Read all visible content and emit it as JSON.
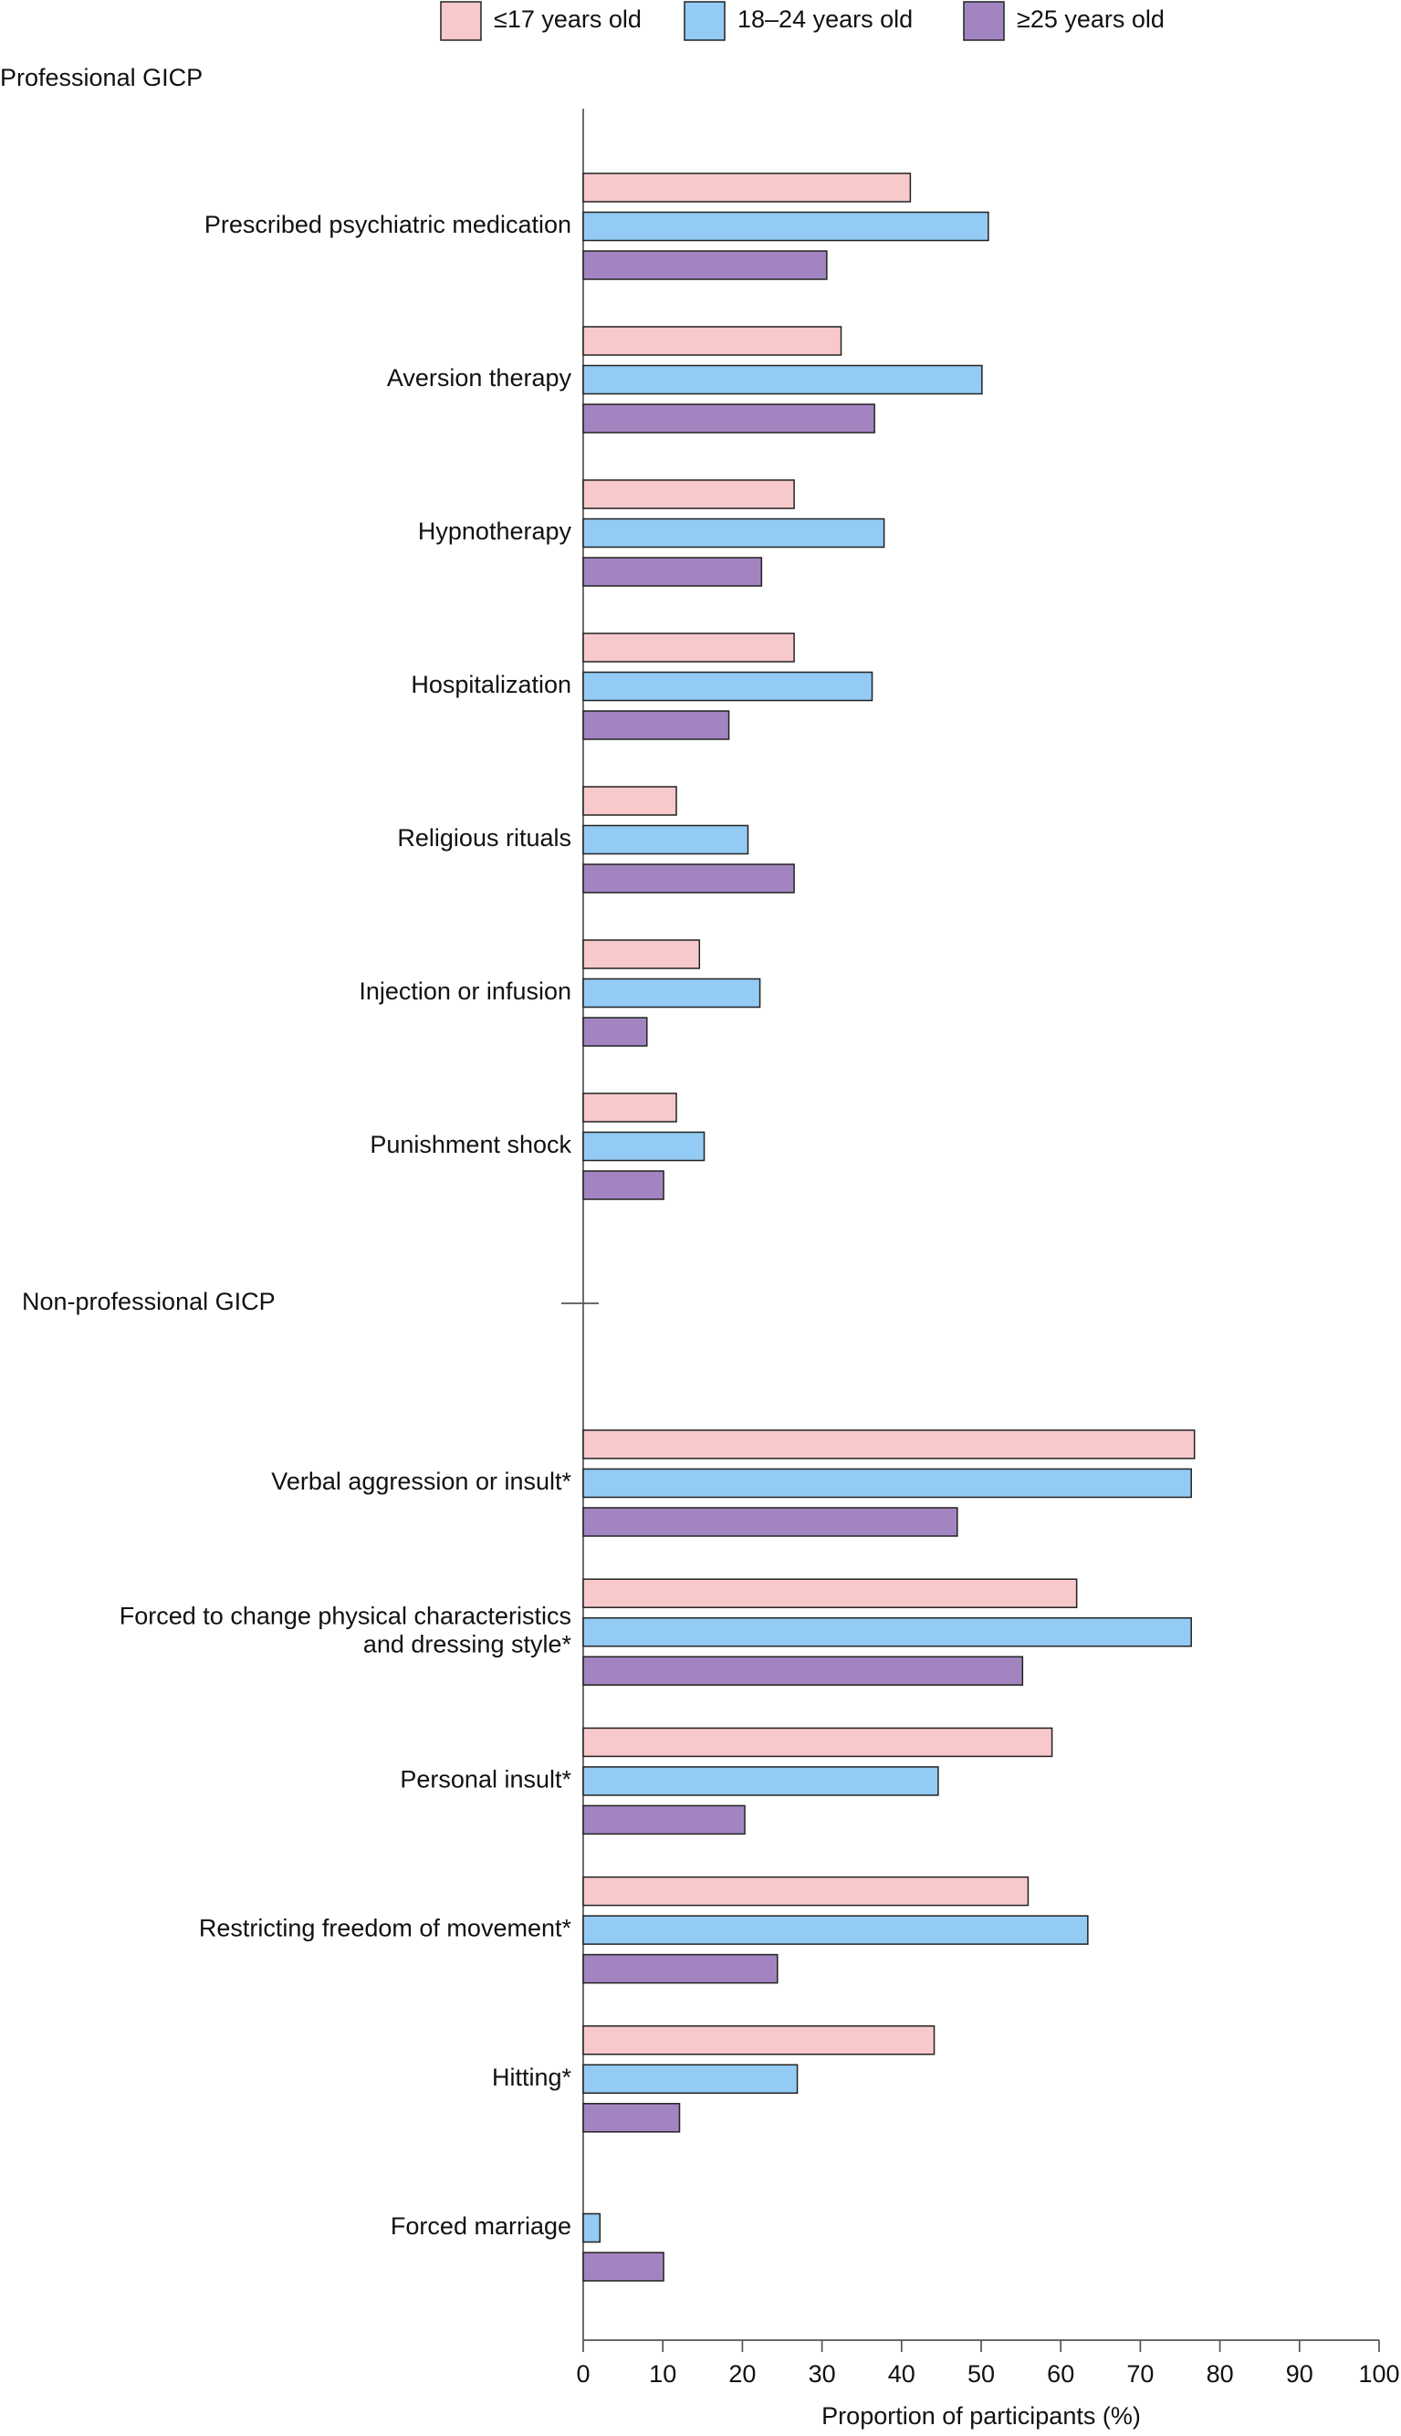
{
  "chart_data": {
    "type": "barh",
    "xlabel": "Proportion of participants (%)",
    "xlim": [
      0,
      100
    ],
    "xticks": [
      0,
      10,
      20,
      30,
      40,
      50,
      60,
      70,
      80,
      90,
      100
    ],
    "category_groups": [
      {
        "title": "Professional GICP",
        "categories": [
          "Prescribed psychiatric medication",
          "Aversion therapy",
          "Hypnotherapy",
          "Hospitalization",
          "Religious rituals",
          "Injection or infusion",
          "Punishment shock"
        ]
      },
      {
        "title": "Non-professional GICP",
        "categories": [
          "Verbal aggression or insult*",
          "Forced to change physical characteristics\nand dressing style*",
          "Personal insult*",
          "Restricting freedom of movement*",
          "Hitting*",
          "Forced marriage"
        ]
      }
    ],
    "series": [
      {
        "name": "≤17 years old",
        "color": "#f7c9cb",
        "values": [
          41.1,
          32.4,
          26.5,
          26.5,
          11.7,
          14.6,
          11.7,
          76.8,
          62.0,
          58.9,
          55.9,
          44.1,
          0
        ]
      },
      {
        "name": "18–24 years old",
        "color": "#93cbf4",
        "values": [
          50.9,
          50.1,
          37.8,
          36.3,
          20.7,
          22.2,
          15.2,
          76.4,
          76.4,
          44.6,
          63.4,
          26.9,
          2.1
        ]
      },
      {
        "name": "≥25 years old",
        "color": "#a285c0",
        "values": [
          30.6,
          36.6,
          22.4,
          18.3,
          26.5,
          8.0,
          10.1,
          47.0,
          55.2,
          20.3,
          24.4,
          12.1,
          10.1
        ]
      }
    ]
  }
}
